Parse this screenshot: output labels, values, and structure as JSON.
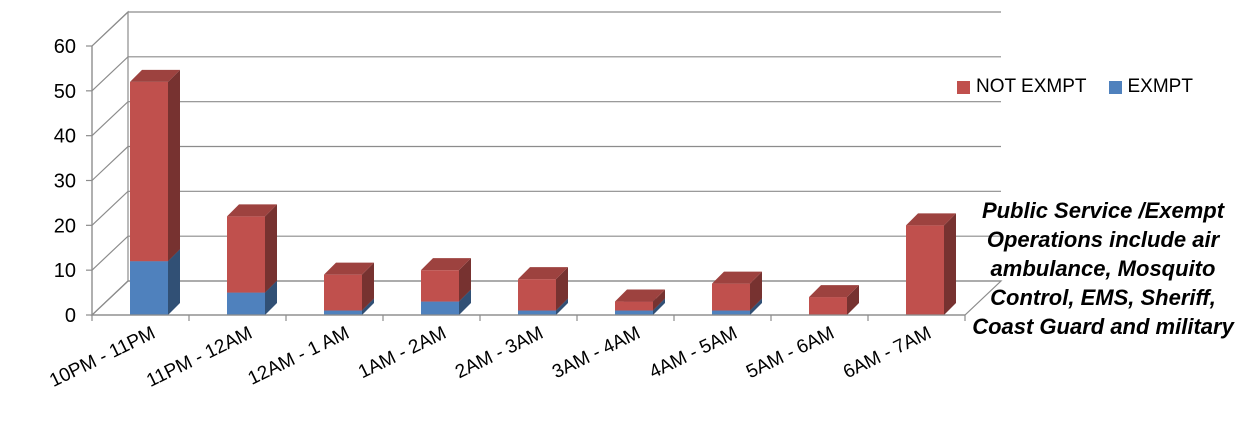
{
  "chart_data": {
    "type": "bar",
    "stacked": true,
    "categories": [
      "10PM - 11PM",
      "11PM - 12AM",
      "12AM - 1 AM",
      "1AM - 2AM",
      "2AM - 3AM",
      "3AM - 4AM",
      "4AM - 5AM",
      "5AM - 6AM",
      "6AM - 7AM"
    ],
    "series": [
      {
        "name": "EXMPT",
        "values": [
          12,
          5,
          1,
          3,
          1,
          1,
          1,
          0,
          0
        ],
        "color": "#4F81BD"
      },
      {
        "name": "NOT EXMPT",
        "values": [
          40,
          17,
          8,
          7,
          7,
          2,
          6,
          4,
          20
        ],
        "color": "#C0504D"
      }
    ],
    "title": "",
    "xlabel": "",
    "ylabel": "",
    "ylim": [
      0,
      60
    ],
    "yticks": [
      0,
      10,
      20,
      30,
      40,
      50,
      60
    ],
    "grid": true,
    "legend_position": "right"
  },
  "annotation": "Public Service /Exempt Operations include air ambulance, Mosquito Control, EMS, Sheriff, Coast Guard and military"
}
